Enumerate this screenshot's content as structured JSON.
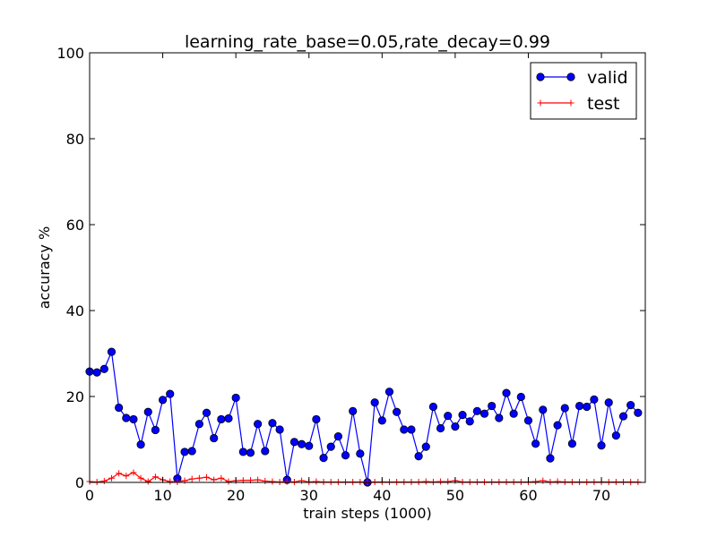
{
  "chart_data": {
    "type": "line",
    "title": "learning_rate_base=0.05,rate_decay=0.99",
    "xlabel": "train steps (1000)",
    "ylabel": "accuracy %",
    "xlim": [
      0,
      76
    ],
    "ylim": [
      0,
      100
    ],
    "xticks": [
      0,
      10,
      20,
      30,
      40,
      50,
      60,
      70
    ],
    "yticks": [
      0,
      20,
      40,
      60,
      80,
      100
    ],
    "xtick_labels": [
      "0",
      "10",
      "20",
      "30",
      "40",
      "50",
      "60",
      "70"
    ],
    "ytick_labels": [
      "0",
      "20",
      "40",
      "60",
      "80",
      "100"
    ],
    "legend_position": "upper right",
    "x": [
      0,
      1,
      2,
      3,
      4,
      5,
      6,
      7,
      8,
      9,
      10,
      11,
      12,
      13,
      14,
      15,
      16,
      17,
      18,
      19,
      20,
      21,
      22,
      23,
      24,
      25,
      26,
      27,
      28,
      29,
      30,
      31,
      32,
      33,
      34,
      35,
      36,
      37,
      38,
      39,
      40,
      41,
      42,
      43,
      44,
      45,
      46,
      47,
      48,
      49,
      50,
      51,
      52,
      53,
      54,
      55,
      56,
      57,
      58,
      59,
      60,
      61,
      62,
      63,
      64,
      65,
      66,
      67,
      68,
      69,
      70,
      71,
      72,
      73,
      74,
      75
    ],
    "series": [
      {
        "name": "valid",
        "color": "#0000ff",
        "marker": "circle",
        "values": [
          25.8,
          25.6,
          26.4,
          30.4,
          17.4,
          15.0,
          14.7,
          8.8,
          16.4,
          12.2,
          19.2,
          20.6,
          0.9,
          7.1,
          7.3,
          13.6,
          16.2,
          10.3,
          14.7,
          14.9,
          19.7,
          7.1,
          6.9,
          13.6,
          7.3,
          13.8,
          12.3,
          0.6,
          9.4,
          8.9,
          8.5,
          14.7,
          5.7,
          8.3,
          10.7,
          6.3,
          16.6,
          6.7,
          0.0,
          18.6,
          14.4,
          21.1,
          16.4,
          12.3,
          12.3,
          6.1,
          8.3,
          17.6,
          12.6,
          15.5,
          13.0,
          15.7,
          14.2,
          16.6,
          16.0,
          17.8,
          15.0,
          20.8,
          16.0,
          19.9,
          14.4,
          9.0,
          16.9,
          5.6,
          13.3,
          17.3,
          9.0,
          17.8,
          17.6,
          19.3,
          8.6,
          18.6,
          10.9,
          15.4,
          18.0,
          16.2
        ]
      },
      {
        "name": "test",
        "color": "#ff0000",
        "marker": "plus",
        "values": [
          0.2,
          0.1,
          0.3,
          1.0,
          2.1,
          1.5,
          2.3,
          1.0,
          0.2,
          1.3,
          0.6,
          0.2,
          0.1,
          0.4,
          0.8,
          1.0,
          1.2,
          0.6,
          1.0,
          0.2,
          0.4,
          0.5,
          0.5,
          0.6,
          0.3,
          0.2,
          0.1,
          0.2,
          0.1,
          0.4,
          0.1,
          0.2,
          0.1,
          0.1,
          0.1,
          0.1,
          0.1,
          0.1,
          0.1,
          0.1,
          0.1,
          0.1,
          0.1,
          0.1,
          0.1,
          0.1,
          0.2,
          0.1,
          0.2,
          0.2,
          0.4,
          0.1,
          0.1,
          0.1,
          0.1,
          0.1,
          0.1,
          0.1,
          0.1,
          0.1,
          0.1,
          0.2,
          0.4,
          0.1,
          0.2,
          0.1,
          0.1,
          0.1,
          0.1,
          0.1,
          0.1,
          0.1,
          0.1,
          0.1,
          0.1,
          0.1
        ]
      }
    ]
  }
}
